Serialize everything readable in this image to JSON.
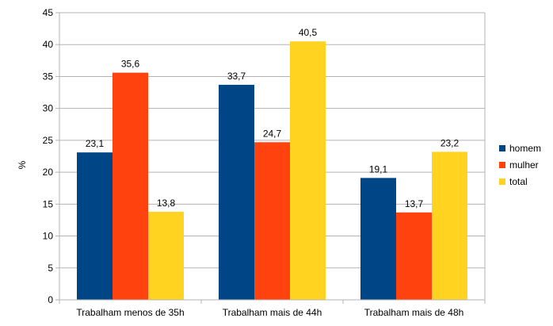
{
  "chart_data": {
    "type": "bar",
    "categories": [
      "Trabalham menos de 35h",
      "Trabalham mais de 44h",
      "Trabalham mais de 48h"
    ],
    "series": [
      {
        "name": "homem",
        "values": [
          23.1,
          33.7,
          19.1
        ],
        "labels": [
          "23,1",
          "33,7",
          "19,1"
        ],
        "color": "#004586"
      },
      {
        "name": "mulher",
        "values": [
          35.6,
          24.7,
          13.7
        ],
        "labels": [
          "35,6",
          "24,7",
          "13,7"
        ],
        "color": "#ff420e"
      },
      {
        "name": "total",
        "values": [
          13.8,
          40.5,
          23.2
        ],
        "labels": [
          "13,8",
          "40,5",
          "23,2"
        ],
        "color": "#ffd320"
      }
    ],
    "title": "",
    "xlabel": "",
    "ylabel": "%",
    "ylim": [
      0,
      45
    ],
    "yticks": [
      "0",
      "5",
      "10",
      "15",
      "20",
      "25",
      "30",
      "35",
      "40",
      "45"
    ],
    "grid": true,
    "legend_position": "right",
    "gridline_color": "#b3b3b3"
  }
}
